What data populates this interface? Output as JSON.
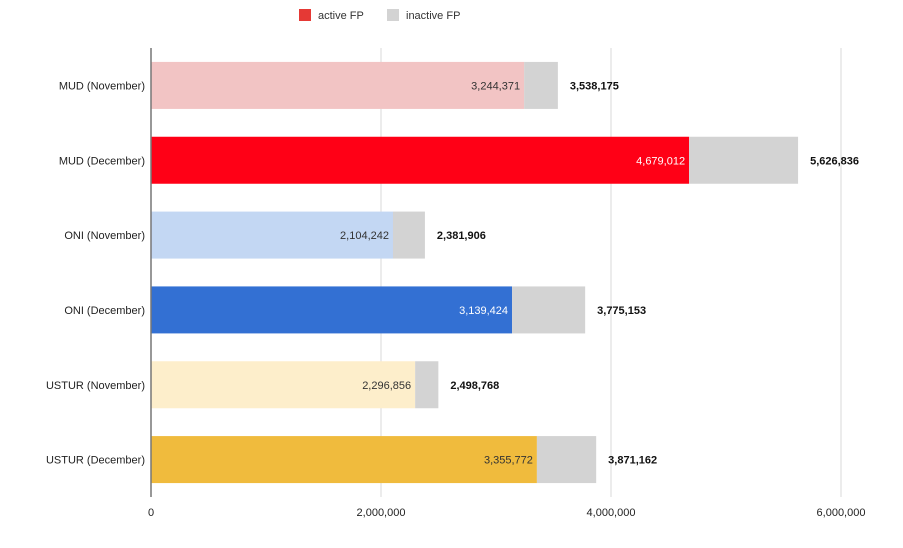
{
  "chart_data": {
    "type": "bar",
    "orientation": "horizontal",
    "stacked": true,
    "title": "",
    "xlabel": "",
    "ylabel": "",
    "xlim": [
      0,
      6000000
    ],
    "x_ticks": [
      0,
      2000000,
      4000000,
      6000000
    ],
    "x_tick_labels": [
      "0",
      "2,000,000",
      "4,000,000",
      "6,000,000"
    ],
    "grid": true,
    "legend_position": "top",
    "legend": [
      {
        "name": "active FP",
        "color": "#e53935"
      },
      {
        "name": "inactive FP",
        "color": "#d3d3d3"
      }
    ],
    "categories": [
      "MUD (November)",
      "MUD (December)",
      "ONI (November)",
      "ONI (December)",
      "USTUR (November)",
      "USTUR (December)"
    ],
    "series": [
      {
        "name": "active FP",
        "values": [
          3244371,
          4679012,
          2104242,
          3139424,
          2296856,
          3355772
        ],
        "labels": [
          "3,244,371",
          "4,679,012",
          "2,104,242",
          "3,139,424",
          "2,296,856",
          "3,355,772"
        ],
        "colors": [
          "#f2c4c4",
          "#ff0016",
          "#c3d7f3",
          "#3370d3",
          "#fdeecb",
          "#f0bb3d"
        ],
        "label_colors": [
          "#333333",
          "#ffffff",
          "#333333",
          "#ffffff",
          "#333333",
          "#333333"
        ]
      },
      {
        "name": "inactive FP",
        "values": [
          293804,
          947824,
          277664,
          635729,
          201912,
          515390
        ],
        "color": "#d3d3d3"
      }
    ],
    "totals": [
      3538175,
      5626836,
      2381906,
      3775153,
      2498768,
      3871162
    ],
    "total_labels": [
      "3,538,175",
      "5,626,836",
      "2,381,906",
      "3,775,153",
      "2,498,768",
      "3,871,162"
    ]
  }
}
